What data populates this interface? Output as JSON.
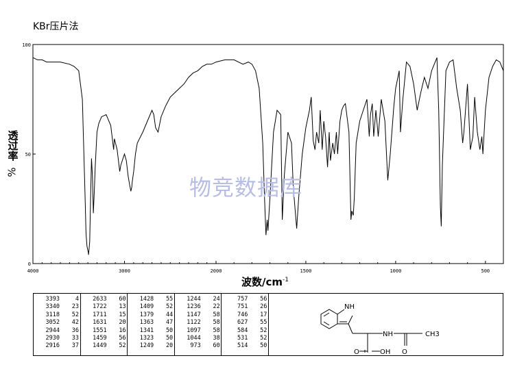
{
  "method_label": "KBr压片法",
  "watermark": "物竞数据库",
  "chart_data": {
    "type": "line",
    "title": "KBr压片法",
    "ylabel_top": "透过率",
    "ylabel_bottom": "%",
    "xlabel": "波数/cm",
    "xlabel_sup": "-1",
    "xlim": [
      4000,
      400
    ],
    "ylim": [
      0,
      100
    ],
    "xticks": [
      4000,
      3000,
      2000,
      1500,
      1000,
      500
    ],
    "yticks": [
      0,
      50,
      100
    ],
    "grid": false,
    "series": [
      {
        "x": [
          4000,
          3950,
          3900,
          3850,
          3800,
          3700,
          3600,
          3550,
          3500,
          3460,
          3430,
          3420,
          3410,
          3400,
          3395,
          3393,
          3390,
          3380,
          3370,
          3360,
          3350,
          3340,
          3330,
          3320,
          3300,
          3280,
          3250,
          3200,
          3150,
          3118,
          3110,
          3080,
          3052,
          3040,
          3000,
          2980,
          2960,
          2944,
          2930,
          2920,
          2916,
          2900,
          2880,
          2860,
          2800,
          2750,
          2700,
          2680,
          2660,
          2633,
          2600,
          2550,
          2500,
          2450,
          2400,
          2350,
          2300,
          2250,
          2200,
          2150,
          2100,
          2050,
          2000,
          1950,
          1900,
          1850,
          1820,
          1800,
          1780,
          1760,
          1740,
          1730,
          1722,
          1715,
          1711,
          1700,
          1680,
          1660,
          1640,
          1631,
          1620,
          1600,
          1580,
          1570,
          1560,
          1551,
          1540,
          1520,
          1500,
          1480,
          1470,
          1459,
          1449,
          1440,
          1428,
          1420,
          1409,
          1400,
          1390,
          1379,
          1370,
          1363,
          1350,
          1341,
          1330,
          1323,
          1310,
          1300,
          1290,
          1280,
          1260,
          1249,
          1244,
          1236,
          1230,
          1220,
          1200,
          1180,
          1160,
          1147,
          1140,
          1130,
          1122,
          1110,
          1097,
          1080,
          1060,
          1044,
          1030,
          1010,
          1000,
          980,
          973,
          960,
          940,
          920,
          900,
          880,
          860,
          840,
          820,
          800,
          780,
          770,
          760,
          757,
          751,
          746,
          740,
          720,
          700,
          680,
          660,
          640,
          627,
          620,
          600,
          584,
          570,
          560,
          545,
          531,
          520,
          514,
          500,
          480,
          460,
          440,
          420,
          410,
          400
        ],
        "y": [
          94,
          93,
          93,
          92,
          92,
          92,
          91,
          90,
          88,
          75,
          30,
          14,
          8,
          6,
          5,
          4,
          5,
          10,
          30,
          48,
          40,
          23,
          32,
          44,
          60,
          64,
          67,
          68,
          63,
          52,
          57,
          52,
          42,
          45,
          50,
          47,
          40,
          36,
          33,
          35,
          37,
          42,
          50,
          55,
          60,
          65,
          70,
          68,
          62,
          60,
          67,
          72,
          76,
          78,
          80,
          82,
          85,
          87,
          88,
          90,
          91,
          91,
          92,
          93,
          93,
          91,
          92,
          91,
          88,
          80,
          55,
          30,
          13,
          20,
          15,
          30,
          60,
          70,
          68,
          20,
          40,
          60,
          55,
          35,
          25,
          16,
          30,
          50,
          62,
          70,
          76,
          56,
          52,
          60,
          55,
          70,
          52,
          65,
          58,
          44,
          60,
          47,
          55,
          50,
          60,
          50,
          65,
          70,
          72,
          73,
          60,
          20,
          24,
          22,
          30,
          55,
          65,
          70,
          75,
          58,
          68,
          73,
          58,
          70,
          58,
          75,
          65,
          38,
          50,
          72,
          80,
          88,
          60,
          75,
          92,
          90,
          82,
          70,
          78,
          85,
          80,
          88,
          92,
          94,
          70,
          56,
          26,
          17,
          45,
          88,
          92,
          93,
          80,
          70,
          55,
          60,
          82,
          52,
          58,
          76,
          60,
          52,
          58,
          50,
          70,
          85,
          90,
          93,
          92,
          90,
          88
        ]
      }
    ],
    "peak_table": [
      [
        [
          "3393",
          "4"
        ],
        [
          "3340",
          "23"
        ],
        [
          "3118",
          "52"
        ],
        [
          "3052",
          "42"
        ],
        [
          "2944",
          "36"
        ],
        [
          "2930",
          "33"
        ],
        [
          "2916",
          "37"
        ]
      ],
      [
        [
          "2633",
          "60"
        ],
        [
          "1722",
          "13"
        ],
        [
          "1711",
          "15"
        ],
        [
          "1631",
          "20"
        ],
        [
          "1551",
          "16"
        ],
        [
          "1459",
          "56"
        ],
        [
          "1449",
          "52"
        ]
      ],
      [
        [
          "1428",
          "55"
        ],
        [
          "1409",
          "52"
        ],
        [
          "1379",
          "44"
        ],
        [
          "1363",
          "47"
        ],
        [
          "1341",
          "50"
        ],
        [
          "1323",
          "50"
        ],
        [
          "1249",
          "20"
        ]
      ],
      [
        [
          "1244",
          "24"
        ],
        [
          "1236",
          "22"
        ],
        [
          "1147",
          "58"
        ],
        [
          "1122",
          "58"
        ],
        [
          "1097",
          "58"
        ],
        [
          "1044",
          "38"
        ],
        [
          "973",
          "60"
        ]
      ],
      [
        [
          "757",
          "56"
        ],
        [
          "751",
          "26"
        ],
        [
          "746",
          "17"
        ],
        [
          "627",
          "55"
        ],
        [
          "584",
          "52"
        ],
        [
          "531",
          "52"
        ],
        [
          "514",
          "50"
        ]
      ]
    ]
  },
  "structure": {
    "nh_label": "NH",
    "amide_nh_label": "NH",
    "carbonyl_o_label": "O",
    "acid_label": "O",
    "hydroxyl_label": "OH",
    "methyl_label": "CH3"
  }
}
